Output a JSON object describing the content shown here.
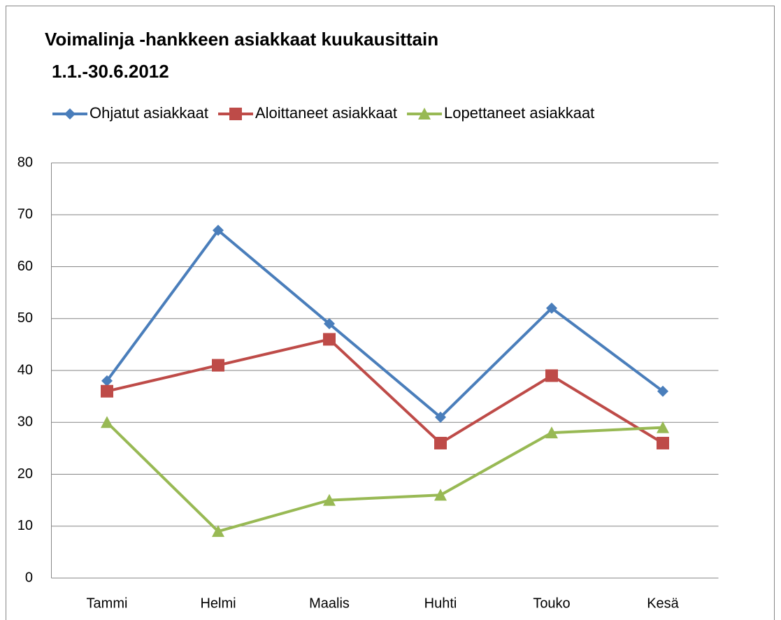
{
  "chart_data": {
    "type": "line",
    "title": "Voimalinja -hankkeen asiakkaat kuukausittain",
    "subtitle": "1.1.-30.6.2012",
    "categories": [
      "Tammi",
      "Helmi",
      "Maalis",
      "Huhti",
      "Touko",
      "Kesä"
    ],
    "series": [
      {
        "name": "Ohjatut asiakkaat",
        "color": "#4a7ebb",
        "marker": "diamond",
        "values": [
          38,
          67,
          49,
          31,
          52,
          36
        ]
      },
      {
        "name": "Aloittaneet asiakkaat",
        "color": "#be4b48",
        "marker": "square",
        "values": [
          36,
          41,
          46,
          26,
          39,
          26
        ]
      },
      {
        "name": "Lopettaneet asiakkaat",
        "color": "#98b954",
        "marker": "triangle",
        "values": [
          30,
          9,
          15,
          16,
          28,
          29
        ]
      }
    ],
    "ylim": [
      0,
      80
    ],
    "yticks": [
      0,
      10,
      20,
      30,
      40,
      50,
      60,
      70,
      80
    ],
    "grid": true,
    "legend": "top"
  }
}
